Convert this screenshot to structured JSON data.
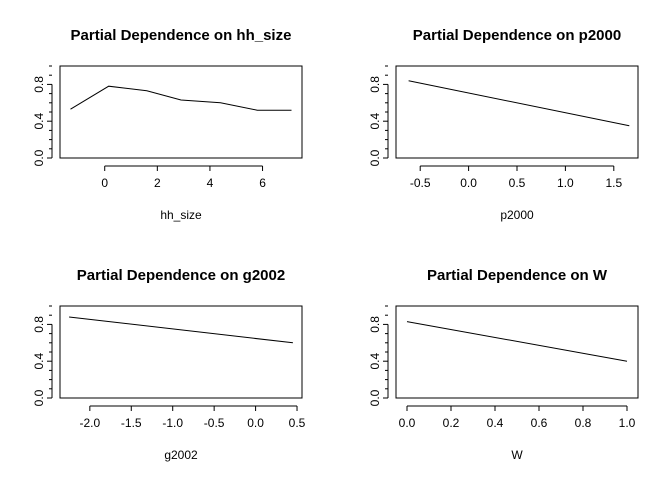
{
  "chart_data": [
    {
      "type": "line",
      "title": "Partial Dependence on hh_size",
      "xlabel": "hh_size",
      "ylabel": "",
      "xlim": [
        -1.7,
        7.5
      ],
      "ylim": [
        0.0,
        1.0
      ],
      "xticks": [
        0,
        2,
        4,
        6
      ],
      "xtick_labels": [
        "0",
        "2",
        "4",
        "6"
      ],
      "yticks": [
        0.0,
        0.4,
        0.8
      ],
      "ytick_labels": [
        "0.0",
        "0.4",
        "0.8"
      ],
      "series": [
        {
          "x": [
            -1.3,
            0.15,
            1.6,
            2.9,
            4.4,
            5.8,
            7.1
          ],
          "y": [
            0.53,
            0.78,
            0.73,
            0.63,
            0.6,
            0.52,
            0.52
          ]
        }
      ]
    },
    {
      "type": "line",
      "title": "Partial Dependence on p2000",
      "xlabel": "p2000",
      "ylabel": "",
      "xlim": [
        -0.75,
        1.75
      ],
      "ylim": [
        0.0,
        1.0
      ],
      "xticks": [
        -0.5,
        0.0,
        0.5,
        1.0,
        1.5
      ],
      "xtick_labels": [
        "-0.5",
        "0.0",
        "0.5",
        "1.0",
        "1.5"
      ],
      "yticks": [
        0.0,
        0.4,
        0.8
      ],
      "ytick_labels": [
        "0.0",
        "0.4",
        "0.8"
      ],
      "series": [
        {
          "x": [
            -0.62,
            1.66
          ],
          "y": [
            0.84,
            0.35
          ]
        }
      ]
    },
    {
      "type": "line",
      "title": "Partial Dependence on g2002",
      "xlabel": "g2002",
      "ylabel": "",
      "xlim": [
        -2.36,
        0.56
      ],
      "ylim": [
        0.0,
        1.0
      ],
      "xticks": [
        -2.0,
        -1.5,
        -1.0,
        -0.5,
        0.0,
        0.5
      ],
      "xtick_labels": [
        "-2.0",
        "-1.5",
        "-1.0",
        "-0.5",
        "0.0",
        "0.5"
      ],
      "yticks": [
        0.0,
        0.4,
        0.8
      ],
      "ytick_labels": [
        "0.0",
        "0.4",
        "0.8"
      ],
      "series": [
        {
          "x": [
            -2.25,
            0.45
          ],
          "y": [
            0.88,
            0.6
          ]
        }
      ]
    },
    {
      "type": "line",
      "title": "Partial Dependence on W",
      "xlabel": "W",
      "ylabel": "",
      "xlim": [
        -0.05,
        1.05
      ],
      "ylim": [
        0.0,
        1.0
      ],
      "xticks": [
        0.0,
        0.2,
        0.4,
        0.6,
        0.8,
        1.0
      ],
      "xtick_labels": [
        "0.0",
        "0.2",
        "0.4",
        "0.6",
        "0.8",
        "1.0"
      ],
      "yticks": [
        0.0,
        0.4,
        0.8
      ],
      "ytick_labels": [
        "0.0",
        "0.4",
        "0.8"
      ],
      "series": [
        {
          "x": [
            0.0,
            1.0
          ],
          "y": [
            0.83,
            0.4
          ]
        }
      ]
    }
  ]
}
